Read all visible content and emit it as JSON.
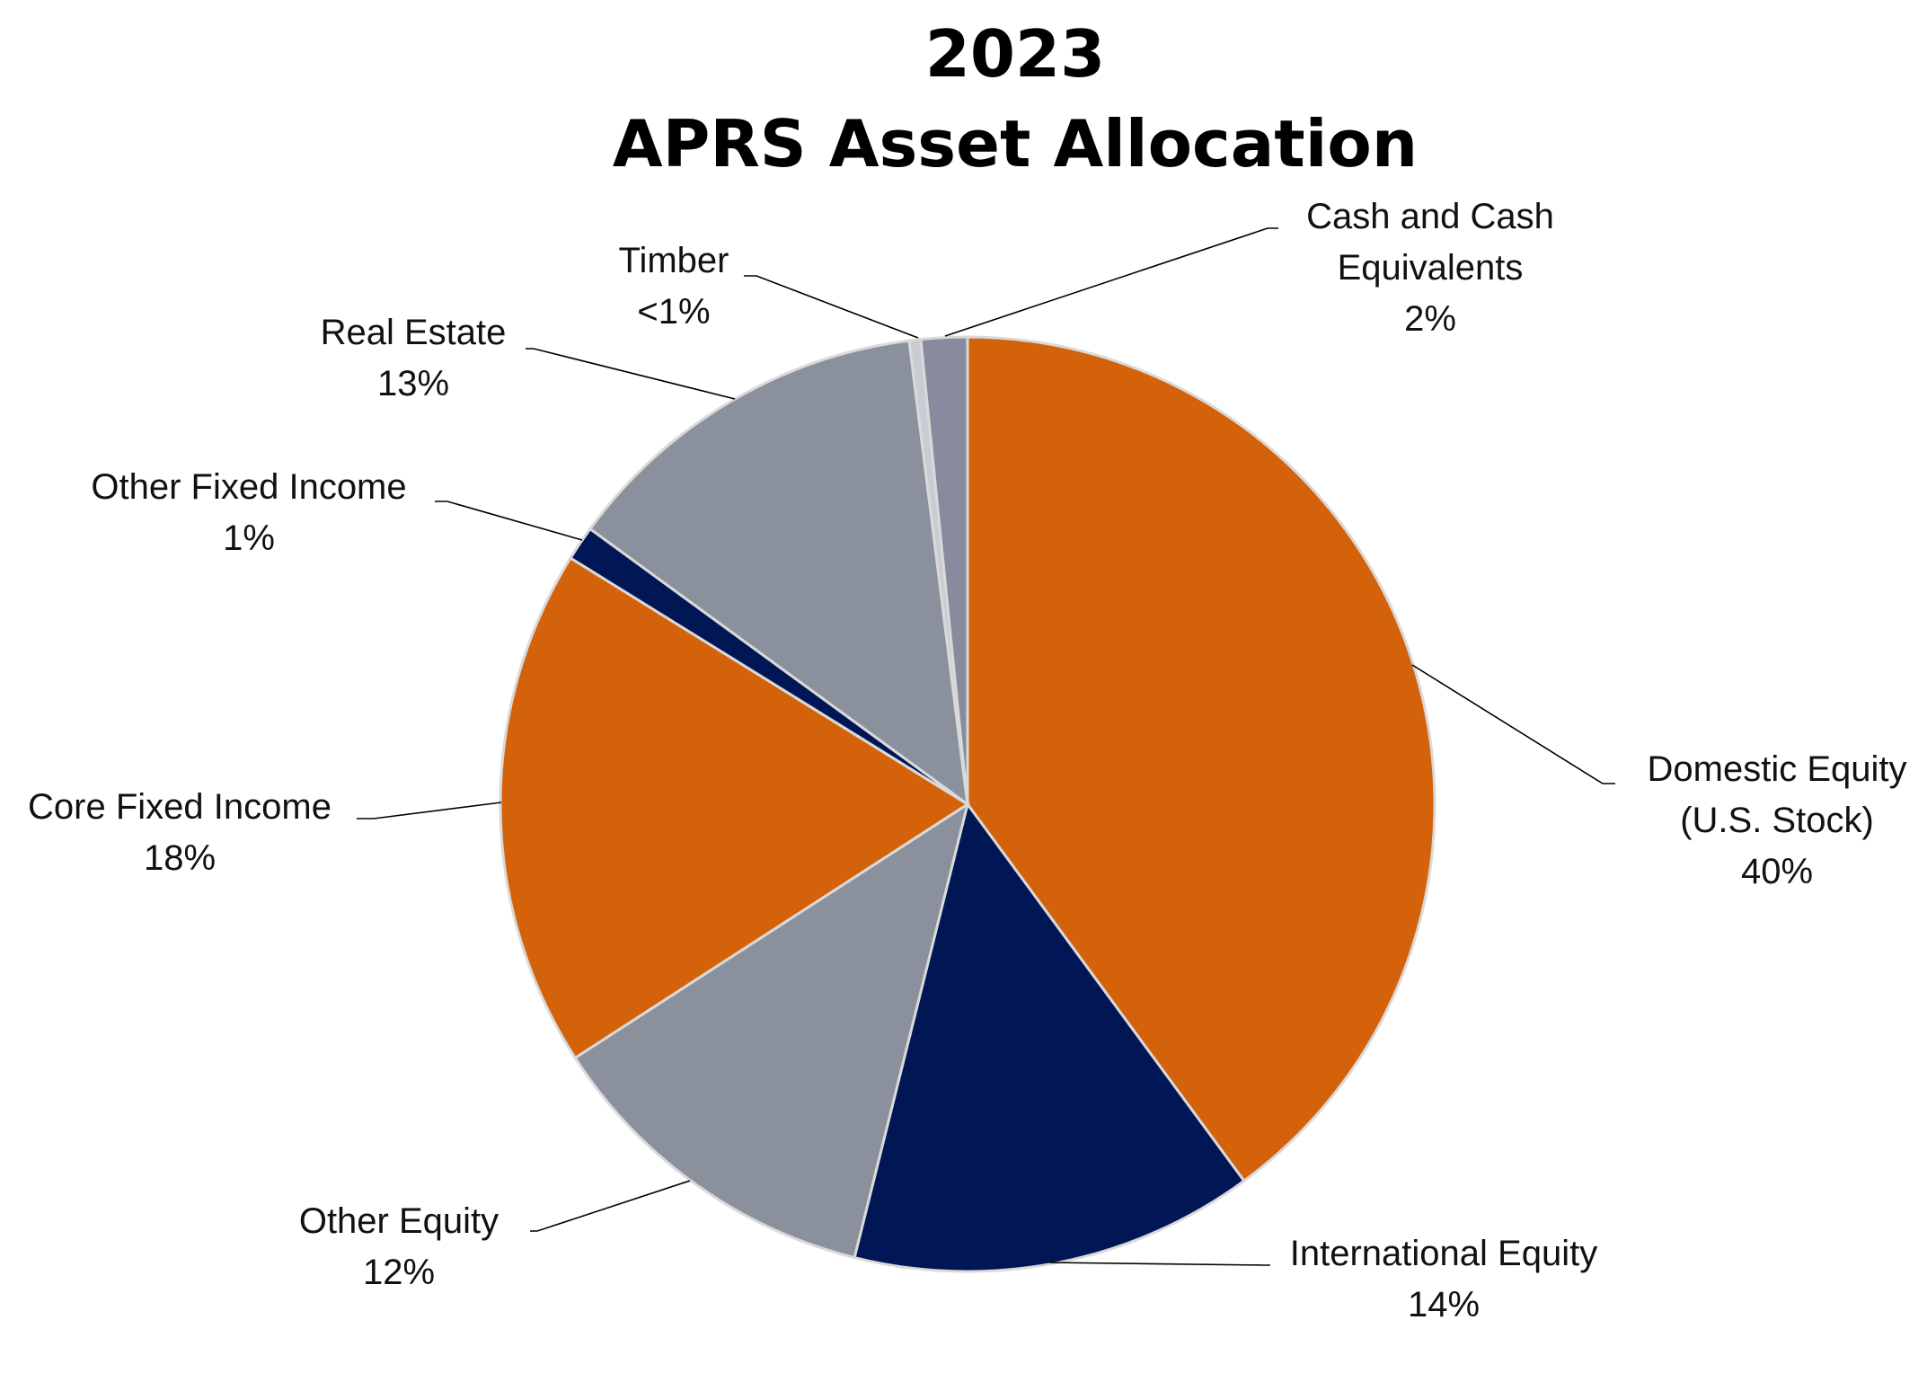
{
  "chart_data": {
    "type": "pie",
    "title": [
      "2023",
      "APRS Asset Allocation"
    ],
    "slices": [
      {
        "name": "Domestic Equity (U.S. Stock)",
        "label_lines": [
          "Domestic Equity",
          "(U.S. Stock)",
          "40%"
        ],
        "value": 40,
        "color": "#d4620a"
      },
      {
        "name": "International Equity",
        "label_lines": [
          "International Equity",
          "14%"
        ],
        "value": 14,
        "color": "#001655"
      },
      {
        "name": "Other Equity",
        "label_lines": [
          "Other Equity",
          "12%"
        ],
        "value": 12,
        "color": "#8a919c"
      },
      {
        "name": "Core Fixed Income",
        "label_lines": [
          "Core Fixed Income",
          "18%"
        ],
        "value": 18,
        "color": "#d4620a"
      },
      {
        "name": "Other Fixed Income",
        "label_lines": [
          "Other Fixed Income",
          "1%"
        ],
        "value": 1.2,
        "color": "#001655"
      },
      {
        "name": "Real Estate",
        "label_lines": [
          "Real Estate",
          "13%"
        ],
        "value": 13,
        "color": "#8a919c"
      },
      {
        "name": "Timber",
        "label_lines": [
          "Timber",
          "<1%"
        ],
        "value": 0.4,
        "color": "#c9ccd2"
      },
      {
        "name": "Cash and Cash Equivalents",
        "label_lines": [
          "Cash and Cash",
          "Equivalents",
          "2%"
        ],
        "value": 1.6,
        "color": "#8a8a9e"
      }
    ]
  }
}
